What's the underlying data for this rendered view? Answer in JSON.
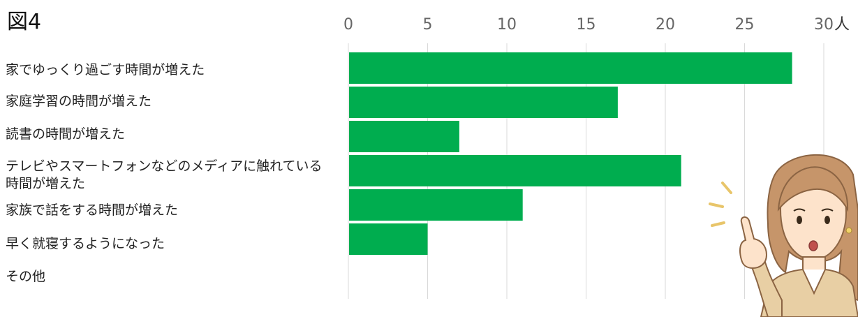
{
  "title": "図4",
  "unit": "人",
  "chart_data": {
    "type": "bar",
    "orientation": "horizontal",
    "title": "図4",
    "xlabel": "人",
    "ylabel": "",
    "xlim": [
      0,
      30
    ],
    "xticks": [
      "0",
      "5",
      "10",
      "15",
      "20",
      "25",
      "30"
    ],
    "grid": true,
    "bar_color": "#00ad4f",
    "categories": [
      "家でゆっくり過ごす時間が増えた",
      "家庭学習の時間が増えた",
      "読書の時間が増えた",
      "テレビやスマートフォンなどのメディアに触れている時間が増えた",
      "家族で話をする時間が増えた",
      "早く就寝するようになった",
      "その他"
    ],
    "values": [
      28,
      17,
      7,
      21,
      11,
      5,
      0
    ]
  },
  "labels": {
    "c0": "家でゆっくり過ごす時間が増えた",
    "c1": "家庭学習の時間が増えた",
    "c2": "読書の時間が増えた",
    "c3_line1": "テレビやスマートフォンなどのメディアに触れている",
    "c3_line2": "時間が増えた",
    "c4": "家族で話をする時間が増えた",
    "c5": "早く就寝するようになった",
    "c6": "その他"
  }
}
